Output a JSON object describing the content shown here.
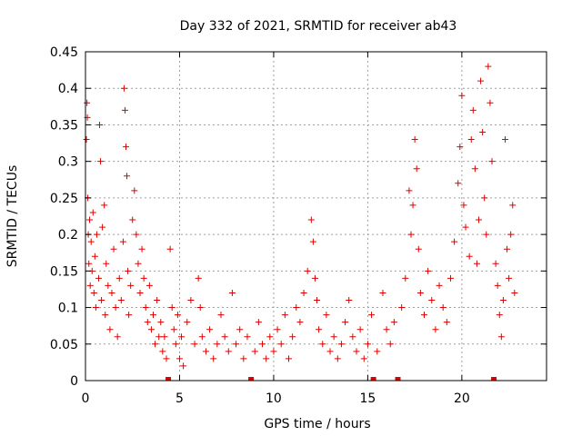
{
  "chart_data": {
    "type": "scatter",
    "title": "Day 332 of 2021, SRMTID for receiver ab43",
    "xlabel": "GPS time / hours",
    "ylabel": "SRMTID / TECUs",
    "xlim": [
      0,
      24.5
    ],
    "ylim": [
      0,
      0.45
    ],
    "xticks": [
      0,
      5,
      10,
      15,
      20
    ],
    "xtick_labels": [
      "0",
      "5",
      "10",
      "15",
      "20"
    ],
    "yticks": [
      0,
      0.05,
      0.1,
      0.15,
      0.2,
      0.25,
      0.3,
      0.35,
      0.4,
      0.45
    ],
    "ytick_labels": [
      "0",
      "0.05",
      "0.1",
      "0.15",
      "0.2",
      "0.25",
      "0.3",
      "0.35",
      "0.4",
      "0.45"
    ],
    "grid": true,
    "marker": "+",
    "color": "#e00000",
    "data_gaps_x": [
      4.4,
      8.8,
      15.3,
      16.6,
      21.7
    ],
    "series": [
      {
        "name": "SRMTID",
        "points": [
          [
            0.05,
            0.33
          ],
          [
            0.08,
            0.38
          ],
          [
            0.1,
            0.36
          ],
          [
            0.12,
            0.25
          ],
          [
            0.15,
            0.2
          ],
          [
            0.18,
            0.16
          ],
          [
            0.22,
            0.22
          ],
          [
            0.25,
            0.13
          ],
          [
            0.3,
            0.19
          ],
          [
            0.35,
            0.15
          ],
          [
            0.4,
            0.23
          ],
          [
            0.45,
            0.12
          ],
          [
            0.5,
            0.17
          ],
          [
            0.55,
            0.1
          ],
          [
            0.6,
            0.2
          ],
          [
            0.7,
            0.14
          ],
          [
            0.75,
            0.35
          ],
          [
            0.8,
            0.3
          ],
          [
            0.85,
            0.11
          ],
          [
            0.9,
            0.21
          ],
          [
            1.0,
            0.24
          ],
          [
            1.05,
            0.09
          ],
          [
            1.1,
            0.16
          ],
          [
            1.2,
            0.13
          ],
          [
            1.3,
            0.07
          ],
          [
            1.4,
            0.12
          ],
          [
            1.5,
            0.18
          ],
          [
            1.6,
            0.1
          ],
          [
            1.7,
            0.06
          ],
          [
            1.8,
            0.14
          ],
          [
            1.9,
            0.11
          ],
          [
            2.0,
            0.19
          ],
          [
            2.05,
            0.4
          ],
          [
            2.1,
            0.37
          ],
          [
            2.15,
            0.32
          ],
          [
            2.2,
            0.28
          ],
          [
            2.25,
            0.15
          ],
          [
            2.3,
            0.09
          ],
          [
            2.4,
            0.13
          ],
          [
            2.5,
            0.22
          ],
          [
            2.6,
            0.26
          ],
          [
            2.7,
            0.2
          ],
          [
            2.8,
            0.16
          ],
          [
            2.9,
            0.12
          ],
          [
            3.0,
            0.18
          ],
          [
            3.1,
            0.14
          ],
          [
            3.2,
            0.1
          ],
          [
            3.3,
            0.08
          ],
          [
            3.4,
            0.13
          ],
          [
            3.5,
            0.07
          ],
          [
            3.6,
            0.09
          ],
          [
            3.7,
            0.05
          ],
          [
            3.8,
            0.11
          ],
          [
            3.9,
            0.06
          ],
          [
            4.0,
            0.08
          ],
          [
            4.1,
            0.04
          ],
          [
            4.2,
            0.06
          ],
          [
            4.3,
            0.03
          ],
          [
            4.5,
            0.18
          ],
          [
            4.6,
            0.1
          ],
          [
            4.7,
            0.07
          ],
          [
            4.8,
            0.05
          ],
          [
            4.9,
            0.09
          ],
          [
            5.0,
            0.03
          ],
          [
            5.1,
            0.06
          ],
          [
            5.2,
            0.02
          ],
          [
            5.4,
            0.08
          ],
          [
            5.6,
            0.11
          ],
          [
            5.8,
            0.05
          ],
          [
            6.0,
            0.14
          ],
          [
            6.1,
            0.1
          ],
          [
            6.2,
            0.06
          ],
          [
            6.4,
            0.04
          ],
          [
            6.6,
            0.07
          ],
          [
            6.8,
            0.03
          ],
          [
            7.0,
            0.05
          ],
          [
            7.2,
            0.09
          ],
          [
            7.4,
            0.06
          ],
          [
            7.6,
            0.04
          ],
          [
            7.8,
            0.12
          ],
          [
            8.0,
            0.05
          ],
          [
            8.2,
            0.07
          ],
          [
            8.4,
            0.03
          ],
          [
            8.6,
            0.06
          ],
          [
            9.0,
            0.04
          ],
          [
            9.2,
            0.08
          ],
          [
            9.4,
            0.05
          ],
          [
            9.6,
            0.03
          ],
          [
            9.8,
            0.06
          ],
          [
            10.0,
            0.04
          ],
          [
            10.2,
            0.07
          ],
          [
            10.4,
            0.05
          ],
          [
            10.6,
            0.09
          ],
          [
            10.8,
            0.03
          ],
          [
            11.0,
            0.06
          ],
          [
            11.2,
            0.1
          ],
          [
            11.4,
            0.08
          ],
          [
            11.6,
            0.12
          ],
          [
            11.8,
            0.15
          ],
          [
            12.0,
            0.22
          ],
          [
            12.1,
            0.19
          ],
          [
            12.2,
            0.14
          ],
          [
            12.3,
            0.11
          ],
          [
            12.4,
            0.07
          ],
          [
            12.6,
            0.05
          ],
          [
            12.8,
            0.09
          ],
          [
            13.0,
            0.04
          ],
          [
            13.2,
            0.06
          ],
          [
            13.4,
            0.03
          ],
          [
            13.6,
            0.05
          ],
          [
            13.8,
            0.08
          ],
          [
            14.0,
            0.11
          ],
          [
            14.2,
            0.06
          ],
          [
            14.4,
            0.04
          ],
          [
            14.6,
            0.07
          ],
          [
            14.8,
            0.03
          ],
          [
            15.0,
            0.05
          ],
          [
            15.2,
            0.09
          ],
          [
            15.5,
            0.04
          ],
          [
            15.8,
            0.12
          ],
          [
            16.0,
            0.07
          ],
          [
            16.2,
            0.05
          ],
          [
            16.4,
            0.08
          ],
          [
            16.8,
            0.1
          ],
          [
            17.0,
            0.14
          ],
          [
            17.2,
            0.26
          ],
          [
            17.3,
            0.2
          ],
          [
            17.4,
            0.24
          ],
          [
            17.5,
            0.33
          ],
          [
            17.6,
            0.29
          ],
          [
            17.7,
            0.18
          ],
          [
            17.8,
            0.12
          ],
          [
            18.0,
            0.09
          ],
          [
            18.2,
            0.15
          ],
          [
            18.4,
            0.11
          ],
          [
            18.6,
            0.07
          ],
          [
            18.8,
            0.13
          ],
          [
            19.0,
            0.1
          ],
          [
            19.2,
            0.08
          ],
          [
            19.4,
            0.14
          ],
          [
            19.6,
            0.19
          ],
          [
            19.8,
            0.27
          ],
          [
            19.9,
            0.32
          ],
          [
            20.0,
            0.39
          ],
          [
            20.1,
            0.24
          ],
          [
            20.2,
            0.21
          ],
          [
            20.4,
            0.17
          ],
          [
            20.5,
            0.33
          ],
          [
            20.6,
            0.37
          ],
          [
            20.7,
            0.29
          ],
          [
            20.8,
            0.16
          ],
          [
            20.9,
            0.22
          ],
          [
            21.0,
            0.41
          ],
          [
            21.1,
            0.34
          ],
          [
            21.2,
            0.25
          ],
          [
            21.3,
            0.2
          ],
          [
            21.4,
            0.43
          ],
          [
            21.5,
            0.38
          ],
          [
            21.6,
            0.3
          ],
          [
            21.8,
            0.16
          ],
          [
            21.9,
            0.13
          ],
          [
            22.0,
            0.09
          ],
          [
            22.1,
            0.06
          ],
          [
            22.2,
            0.11
          ],
          [
            22.3,
            0.33
          ],
          [
            22.4,
            0.18
          ],
          [
            22.5,
            0.14
          ],
          [
            22.6,
            0.2
          ],
          [
            22.7,
            0.24
          ],
          [
            22.8,
            0.12
          ]
        ]
      }
    ]
  }
}
